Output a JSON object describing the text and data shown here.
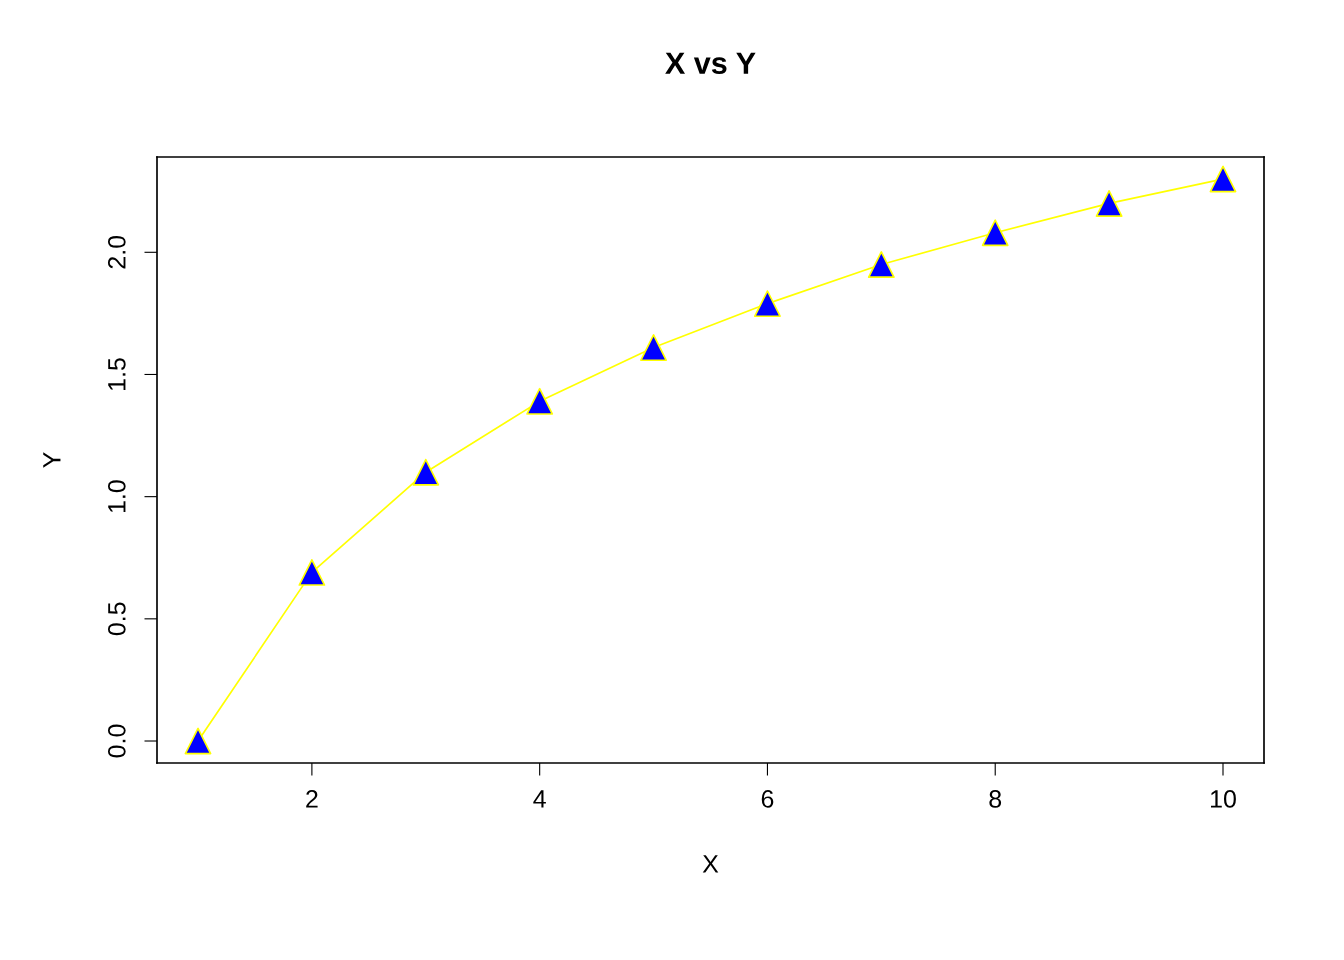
{
  "chart_data": {
    "type": "line",
    "title": "X vs Y",
    "xlabel": "X",
    "ylabel": "Y",
    "x": [
      1,
      2,
      3,
      4,
      5,
      6,
      7,
      8,
      9,
      10
    ],
    "series": [
      {
        "color": "#ffff00",
        "colors": [
          "#0000ff",
          "#0000ff",
          "#0000ff",
          "#0000ff",
          "#0000ff",
          "#0000ff",
          "#0000ff",
          "#0000ff",
          "#0000ff",
          "#0000ff"
        ],
        "values": [
          0.0,
          0.69,
          1.1,
          1.39,
          1.61,
          1.79,
          1.95,
          2.08,
          2.2,
          2.3
        ]
      }
    ],
    "xlim": [
      0.64,
      10.36
    ],
    "ylim": [
      -0.09,
      2.39
    ],
    "xticks": [
      2,
      4,
      6,
      8,
      10
    ],
    "yticks": [
      {
        "value": 0,
        "label": "0.0"
      },
      0.5,
      {
        "value": 1,
        "label": "1.0"
      },
      1.5,
      {
        "value": 2,
        "label": "2.0"
      }
    ],
    "marker": "triangle",
    "line_style": "solid",
    "grid": false,
    "legend": false
  }
}
